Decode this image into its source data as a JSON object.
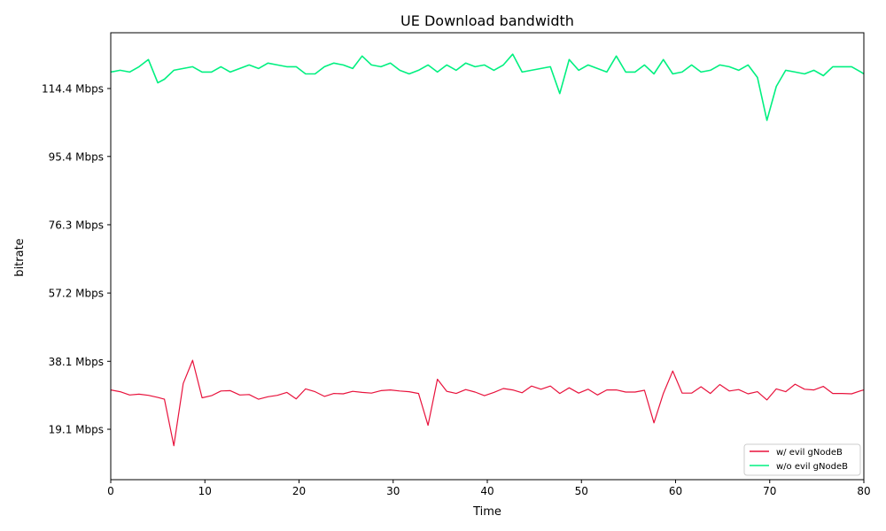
{
  "chart_data": {
    "type": "line",
    "title": "UE Download bandwidth",
    "xlabel": "Time",
    "ylabel": "bitrate",
    "xlim": [
      0,
      80
    ],
    "ylim": [
      5,
      130
    ],
    "x_ticks": [
      0,
      10,
      20,
      30,
      40,
      50,
      60,
      70,
      80
    ],
    "y_ticks": [
      {
        "value": 19.1,
        "label": "19.1 Mbps"
      },
      {
        "value": 38.1,
        "label": "38.1 Mbps"
      },
      {
        "value": 57.2,
        "label": "57.2 Mbps"
      },
      {
        "value": 76.3,
        "label": "76.3 Mbps"
      },
      {
        "value": 95.4,
        "label": "95.4 Mbps"
      },
      {
        "value": 114.4,
        "label": "114.4 Mbps"
      }
    ],
    "grid": false,
    "legend_position": "bottom-right",
    "series": [
      {
        "name": "w/ evil gNodeB",
        "color": "#e8123c",
        "x": [
          0,
          1,
          2,
          3,
          4,
          5,
          5.7,
          6.7,
          7.7,
          8.7,
          9.7,
          10.7,
          11.7,
          12.7,
          13.7,
          14.7,
          15.7,
          16.7,
          17.7,
          18.7,
          19.7,
          20.7,
          21.7,
          22.7,
          23.7,
          24.7,
          25.7,
          26.7,
          27.7,
          28.7,
          29.7,
          30.7,
          31.7,
          32.7,
          33.7,
          34.7,
          35.7,
          36.7,
          37.7,
          38.7,
          39.7,
          40.7,
          41.7,
          42.7,
          43.7,
          44.7,
          45.7,
          46.7,
          47.7,
          48.7,
          49.7,
          50.7,
          51.7,
          52.7,
          53.7,
          54.7,
          55.7,
          56.7,
          57.7,
          58.7,
          59.7,
          60.7,
          61.7,
          62.7,
          63.7,
          64.7,
          65.7,
          66.7,
          67.7,
          68.7,
          69.7,
          70.7,
          71.7,
          72.7,
          73.7,
          74.7,
          75.7,
          76.7,
          77.7,
          78.7,
          79.7,
          80
        ],
        "values": [
          30.1,
          29.6,
          28.7,
          28.9,
          28.6,
          28.0,
          27.5,
          14.5,
          31.9,
          38.4,
          27.9,
          28.5,
          29.8,
          29.9,
          28.7,
          28.8,
          27.5,
          28.2,
          28.6,
          29.4,
          27.6,
          30.4,
          29.6,
          28.3,
          29.1,
          29.0,
          29.7,
          29.4,
          29.2,
          29.9,
          30.1,
          29.8,
          29.6,
          29.1,
          20.2,
          33.1,
          29.7,
          29.1,
          30.2,
          29.5,
          28.5,
          29.4,
          30.5,
          30.1,
          29.3,
          31.2,
          30.3,
          31.2,
          29.1,
          30.7,
          29.2,
          30.3,
          28.7,
          30.1,
          30.1,
          29.5,
          29.5,
          30.0,
          20.9,
          29.1,
          35.4,
          29.2,
          29.2,
          31.0,
          29.1,
          31.6,
          29.8,
          30.2,
          29.0,
          29.6,
          27.3,
          30.4,
          29.6,
          31.7,
          30.3,
          30.1,
          31.1,
          29.1,
          29.1,
          29.0,
          29.9,
          30.1
        ]
      },
      {
        "name": "w/o evil gNodeB",
        "color": "#00f080",
        "x": [
          0,
          1,
          2,
          3,
          4,
          5,
          5.7,
          6.7,
          7.7,
          8.7,
          9.7,
          10.7,
          11.7,
          12.7,
          13.7,
          14.7,
          15.7,
          16.7,
          17.7,
          18.7,
          19.7,
          20.7,
          21.7,
          22.7,
          23.7,
          24.7,
          25.7,
          26.7,
          27.7,
          28.7,
          29.7,
          30.7,
          31.7,
          32.7,
          33.7,
          34.7,
          35.7,
          36.7,
          37.7,
          38.7,
          39.7,
          40.7,
          41.7,
          42.7,
          43.7,
          44.7,
          45.7,
          46.7,
          47.7,
          48.7,
          49.7,
          50.7,
          51.7,
          52.7,
          53.7,
          54.7,
          55.7,
          56.7,
          57.7,
          58.7,
          59.7,
          60.7,
          61.7,
          62.7,
          63.7,
          64.7,
          65.7,
          66.7,
          67.7,
          68.7,
          69.7,
          70.7,
          71.7,
          72.7,
          73.7,
          74.7,
          75.7,
          76.7,
          77.7,
          78.7,
          79.7,
          80
        ],
        "values": [
          119.0,
          119.5,
          119.0,
          120.5,
          122.5,
          116.0,
          117.0,
          119.5,
          120.0,
          120.5,
          119.0,
          119.0,
          120.5,
          119.0,
          120.0,
          121.0,
          120.0,
          121.5,
          121.0,
          120.5,
          120.5,
          118.5,
          118.5,
          120.5,
          121.5,
          121.0,
          120.0,
          123.5,
          121.0,
          120.5,
          121.5,
          119.5,
          118.5,
          119.5,
          121.0,
          119.0,
          121.0,
          119.5,
          121.5,
          120.5,
          121.0,
          119.5,
          121.0,
          124.0,
          119.0,
          119.5,
          120.0,
          120.5,
          113.0,
          122.5,
          119.5,
          121.0,
          120.0,
          119.0,
          123.5,
          119.0,
          119.0,
          121.0,
          118.5,
          122.5,
          118.5,
          119.0,
          121.0,
          119.0,
          119.5,
          121.0,
          120.5,
          119.5,
          121.0,
          117.5,
          105.5,
          115.0,
          119.5,
          119.0,
          118.5,
          119.5,
          118.0,
          120.5,
          120.5,
          120.5,
          119.0,
          118.5
        ]
      }
    ]
  }
}
